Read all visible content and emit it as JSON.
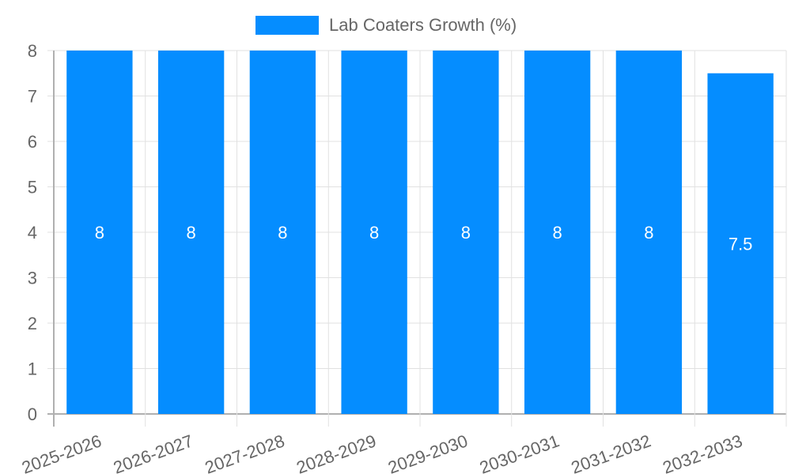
{
  "legend": {
    "label": "Lab Coaters Growth (%)",
    "color": "#058DFF"
  },
  "chart_data": {
    "type": "bar",
    "title": "",
    "xlabel": "",
    "ylabel": "",
    "categories": [
      "2025-2026",
      "2026-2027",
      "2027-2028",
      "2028-2029",
      "2029-2030",
      "2030-2031",
      "2031-2032",
      "2032-2033"
    ],
    "series": [
      {
        "name": "Lab Coaters Growth (%)",
        "values": [
          8,
          8,
          8,
          8,
          8,
          8,
          8,
          7.5
        ],
        "color": "#058DFF"
      }
    ],
    "data_labels": [
      "8",
      "8",
      "8",
      "8",
      "8",
      "8",
      "8",
      "7.5"
    ],
    "ylim": [
      0,
      8
    ],
    "yticks": [
      0,
      1,
      2,
      3,
      4,
      5,
      6,
      7,
      8
    ],
    "grid": true,
    "legend_position": "top",
    "x_tick_rotation": -20
  }
}
